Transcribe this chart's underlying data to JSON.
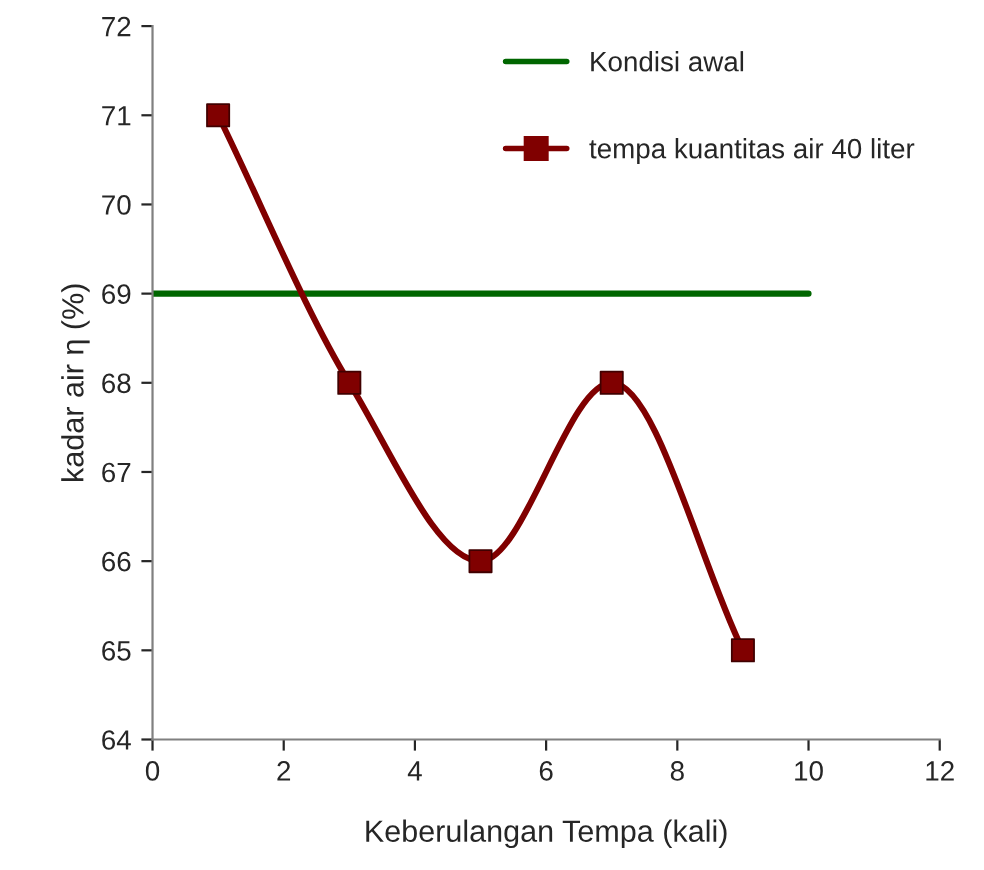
{
  "chart_data": {
    "type": "line",
    "xlabel": "Keberulangan Tempa (kali)",
    "ylabel": "kadar air η (%)",
    "xlim": [
      0,
      12
    ],
    "xticks": [
      0,
      2,
      4,
      6,
      8,
      10,
      12
    ],
    "ylim": [
      64,
      72
    ],
    "yticks": [
      64,
      65,
      66,
      67,
      68,
      69,
      70,
      71,
      72
    ],
    "grid": false,
    "legend": "top right",
    "line_style": "solid",
    "series": [
      {
        "name": "Kondisi awal",
        "color": "#006600",
        "x": [
          0,
          10
        ],
        "values": [
          69,
          69
        ],
        "marker": "none"
      },
      {
        "name": "tempa kuantitas air 40 liter",
        "color": "#800000",
        "x": [
          1,
          3,
          5,
          7,
          9
        ],
        "values": [
          71,
          68,
          66,
          68,
          65
        ],
        "marker": "square"
      }
    ]
  }
}
